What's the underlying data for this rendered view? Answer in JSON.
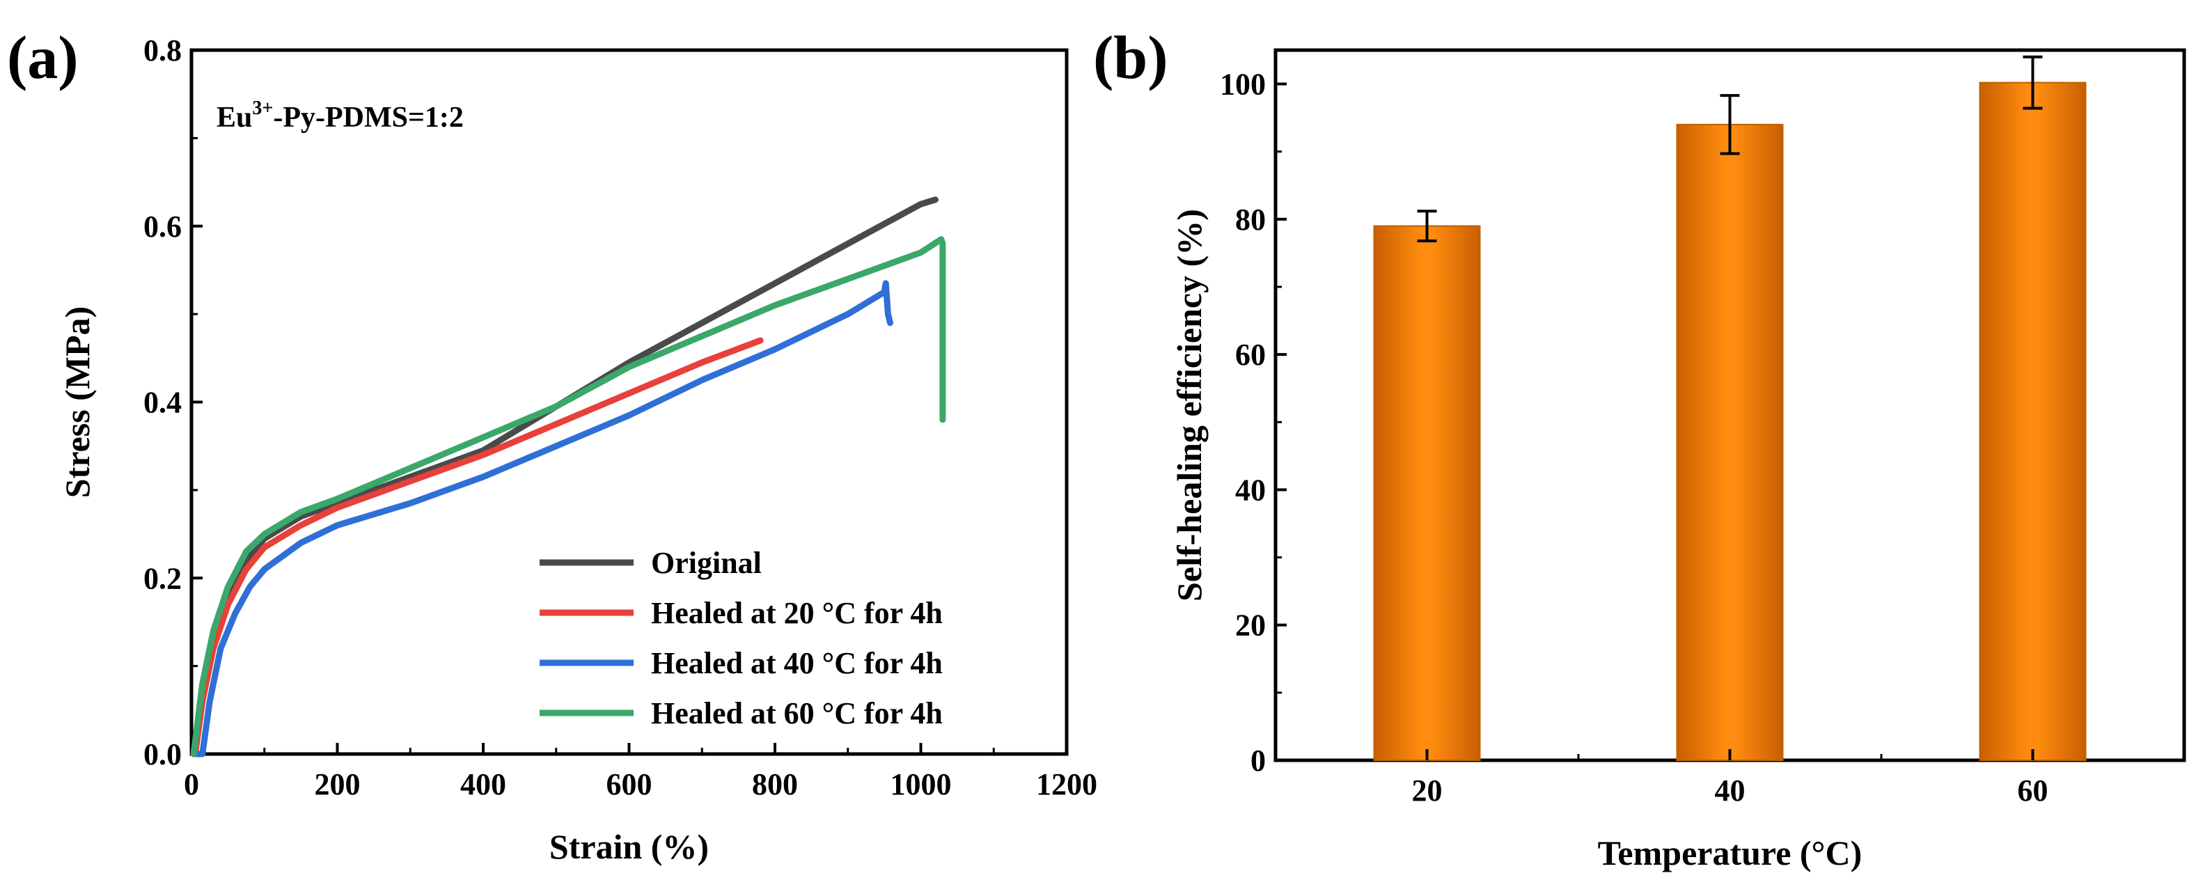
{
  "chart_data": [
    {
      "type": "line",
      "panel_label": "(a)",
      "xlabel": "Strain (%)",
      "ylabel": "Stress (MPa)",
      "xlim": [
        0,
        1200
      ],
      "ylim": [
        0,
        0.8
      ],
      "xticks": [
        0,
        200,
        400,
        600,
        800,
        1000,
        1200
      ],
      "yticks": [
        0.0,
        0.2,
        0.4,
        0.6,
        0.8
      ],
      "xtick_labels": [
        "0",
        "200",
        "400",
        "600",
        "800",
        "1000",
        "1200"
      ],
      "ytick_labels": [
        "0.0",
        "0.2",
        "0.4",
        "0.6",
        "0.8"
      ],
      "annotation": {
        "base": "Eu",
        "sup": "3+",
        "rest": "-Py-PDMS=1:2"
      },
      "legend_position": "bottom-right",
      "grid": false,
      "series": [
        {
          "name": "Original",
          "color": "#4a4a4a",
          "x": [
            5,
            15,
            30,
            50,
            75,
            100,
            150,
            200,
            300,
            400,
            500,
            600,
            700,
            800,
            900,
            1000,
            1020
          ],
          "y": [
            0.0,
            0.06,
            0.13,
            0.18,
            0.22,
            0.245,
            0.27,
            0.285,
            0.315,
            0.345,
            0.395,
            0.445,
            0.49,
            0.535,
            0.58,
            0.625,
            0.63
          ]
        },
        {
          "name": "Healed at 20 °C for 4h",
          "color": "#e8403a",
          "x": [
            5,
            15,
            30,
            50,
            75,
            100,
            150,
            200,
            300,
            400,
            500,
            600,
            700,
            780
          ],
          "y": [
            0.0,
            0.06,
            0.12,
            0.17,
            0.21,
            0.235,
            0.26,
            0.28,
            0.31,
            0.34,
            0.375,
            0.41,
            0.445,
            0.47
          ]
        },
        {
          "name": "Healed at 40 °C for 4h",
          "color": "#2f6fd6",
          "x": [
            8,
            15,
            25,
            40,
            60,
            80,
            100,
            150,
            200,
            300,
            400,
            500,
            600,
            700,
            800,
            900,
            950,
            952,
            955,
            958
          ],
          "y": [
            0.0,
            0.0,
            0.06,
            0.12,
            0.16,
            0.19,
            0.21,
            0.24,
            0.26,
            0.285,
            0.315,
            0.35,
            0.385,
            0.425,
            0.46,
            0.5,
            0.525,
            0.535,
            0.5,
            0.49
          ]
        },
        {
          "name": "Healed at 60 °C for 4h",
          "color": "#3aa86a",
          "x": [
            3,
            15,
            30,
            50,
            75,
            100,
            150,
            200,
            300,
            400,
            500,
            600,
            700,
            800,
            900,
            1000,
            1028,
            1030,
            1030
          ],
          "y": [
            0.0,
            0.08,
            0.14,
            0.19,
            0.23,
            0.25,
            0.275,
            0.29,
            0.325,
            0.36,
            0.395,
            0.44,
            0.475,
            0.51,
            0.54,
            0.57,
            0.585,
            0.58,
            0.38
          ]
        }
      ]
    },
    {
      "type": "bar",
      "panel_label": "(b)",
      "xlabel": "Temperature (°C)",
      "ylabel": "Self-healing efficiency (%)",
      "categories": [
        "20",
        "40",
        "60"
      ],
      "values": [
        79,
        94,
        100.2
      ],
      "errors": [
        2.2,
        4.3,
        3.8
      ],
      "ylim": [
        0,
        105
      ],
      "yticks": [
        0,
        20,
        40,
        60,
        80,
        100
      ],
      "ytick_labels": [
        "0",
        "20",
        "40",
        "60",
        "80",
        "100"
      ],
      "bar_color": "#f07d0a",
      "bar_edge_color": "#c06000",
      "grid": false
    }
  ]
}
